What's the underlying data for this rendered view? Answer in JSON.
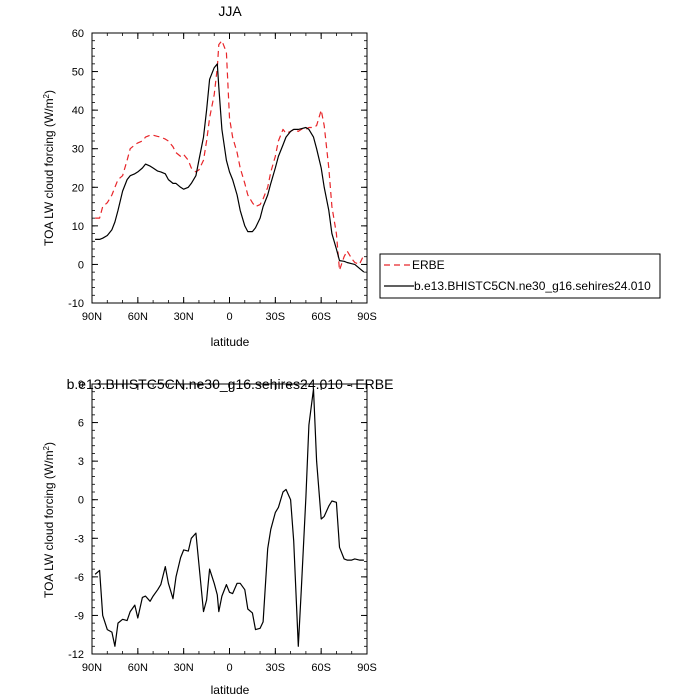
{
  "chart_data": [
    {
      "type": "line",
      "title": "JJA",
      "xlabel": "latitude",
      "ylabel": "TOA LW cloud forcing (W/m²)",
      "xlim": [
        90,
        -90
      ],
      "ylim": [
        -10,
        60
      ],
      "xticks": [
        90,
        60,
        30,
        0,
        -30,
        -60,
        -90
      ],
      "xticklabels": [
        "90N",
        "60N",
        "30N",
        "0",
        "30S",
        "60S",
        "90S"
      ],
      "yticks": [
        -10,
        0,
        10,
        20,
        30,
        40,
        50,
        60
      ],
      "legend": {
        "placement": "right",
        "entries": [
          "ERBE",
          "b.e13.BHISTC5CN.ne30_g16.sehires24.010"
        ]
      },
      "series": [
        {
          "name": "ERBE",
          "color": "#e8262a",
          "dash": "dashed",
          "x": [
            88,
            85,
            83,
            80,
            77,
            75,
            73,
            70,
            67,
            65,
            62,
            60,
            57,
            55,
            52,
            50,
            47,
            45,
            42,
            40,
            37,
            35,
            32,
            30,
            27,
            25,
            22,
            20,
            17,
            15,
            13,
            10,
            8,
            7,
            5,
            2,
            0,
            -2,
            -5,
            -7,
            -10,
            -12,
            -15,
            -17,
            -20,
            -22,
            -25,
            -27,
            -30,
            -32,
            -35,
            -37,
            -40,
            -42,
            -45,
            -47,
            -50,
            -52,
            -55,
            -57,
            -60,
            -62,
            -65,
            -67,
            -70,
            -72,
            -75,
            -77,
            -80,
            -82,
            -85,
            -88
          ],
          "y": [
            12,
            12,
            15,
            16,
            18,
            20,
            22,
            23,
            27,
            30,
            31,
            31.5,
            32,
            33,
            33.5,
            33.5,
            33.2,
            33,
            32.5,
            32,
            30.5,
            29,
            28,
            28.5,
            27,
            25,
            24,
            24.5,
            27,
            32,
            38,
            44,
            51,
            57,
            58,
            55,
            38,
            33,
            29,
            25,
            21,
            18,
            16,
            15,
            15.5,
            17,
            20,
            24,
            28,
            32,
            35,
            34,
            34.5,
            35,
            34.5,
            35,
            35,
            35.5,
            35.5,
            36,
            40,
            36,
            25,
            15,
            8,
            -1.5,
            2,
            3.5,
            1.5,
            0.5,
            0,
            2.5
          ]
        },
        {
          "name": "b.e13.BHISTC5CN.ne30_g16.sehires24.010",
          "color": "#000000",
          "dash": "solid",
          "x": [
            88,
            85,
            83,
            80,
            77,
            75,
            73,
            70,
            67,
            65,
            62,
            60,
            57,
            55,
            52,
            50,
            47,
            45,
            42,
            40,
            37,
            35,
            32,
            30,
            27,
            25,
            22,
            20,
            17,
            15,
            13,
            10,
            8,
            7,
            5,
            2,
            0,
            -2,
            -5,
            -7,
            -10,
            -12,
            -15,
            -17,
            -20,
            -22,
            -25,
            -27,
            -30,
            -32,
            -35,
            -37,
            -40,
            -42,
            -45,
            -47,
            -50,
            -52,
            -55,
            -57,
            -60,
            -62,
            -65,
            -67,
            -70,
            -72,
            -75,
            -77,
            -80,
            -82,
            -85,
            -88
          ],
          "y": [
            6.5,
            6.5,
            6.8,
            7.5,
            9,
            11,
            14,
            19,
            22,
            23,
            23.5,
            24,
            25,
            26,
            25.5,
            25,
            24.2,
            24,
            23.5,
            22,
            21,
            21,
            20,
            19.5,
            20,
            21,
            23,
            27,
            33,
            40,
            48,
            51,
            52,
            46,
            35,
            27,
            24,
            22,
            18,
            14,
            10,
            8.5,
            8.5,
            9.5,
            12,
            15,
            18,
            21,
            25,
            28,
            31,
            33,
            34.5,
            35,
            35,
            35.2,
            35.5,
            35,
            33,
            30,
            25,
            20,
            14,
            8,
            4,
            1,
            0.8,
            0.5,
            0.2,
            0,
            -1,
            -2
          ]
        }
      ]
    },
    {
      "type": "line",
      "title": "b.e13.BHISTC5CN.ne30_g16.sehires24.010 - ERBE",
      "xlabel": "latitude",
      "ylabel": "TOA LW cloud forcing (W/m²)",
      "xlim": [
        90,
        -90
      ],
      "ylim": [
        -12,
        9
      ],
      "xticks": [
        90,
        60,
        30,
        0,
        -30,
        -60,
        -90
      ],
      "xticklabels": [
        "90N",
        "60N",
        "30N",
        "0",
        "30S",
        "60S",
        "90S"
      ],
      "yticks": [
        -12,
        -9,
        -6,
        -3,
        0,
        3,
        6,
        9
      ],
      "series": [
        {
          "color": "#000000",
          "x": [
            88,
            85,
            83,
            80,
            77,
            75,
            73,
            70,
            67,
            65,
            62,
            60,
            57,
            55,
            52,
            50,
            47,
            45,
            42,
            40,
            37,
            35,
            32,
            30,
            27,
            25,
            22,
            20,
            17,
            15,
            13,
            10,
            8,
            7,
            5,
            2,
            0,
            -2,
            -5,
            -7,
            -10,
            -12,
            -15,
            -17,
            -20,
            -22,
            -25,
            -27,
            -30,
            -32,
            -35,
            -37,
            -40,
            -42,
            -45,
            -47,
            -50,
            -52,
            -55,
            -57,
            -60,
            -62,
            -65,
            -67,
            -70,
            -72,
            -75,
            -77,
            -80,
            -82,
            -85,
            -88
          ],
          "y": [
            -5.8,
            -5.5,
            -9,
            -10.1,
            -10.3,
            -11.4,
            -9.6,
            -9.3,
            -9.4,
            -8.7,
            -8.2,
            -9.2,
            -7.6,
            -7.5,
            -7.9,
            -7.5,
            -7,
            -6.6,
            -5.2,
            -6.5,
            -7.7,
            -6,
            -4.5,
            -3.9,
            -4,
            -3,
            -2.6,
            -5,
            -8.7,
            -7.8,
            -5.4,
            -6.5,
            -7.4,
            -8.7,
            -7.5,
            -6.6,
            -7.2,
            -7.3,
            -6.5,
            -6.5,
            -7,
            -8.5,
            -8.8,
            -10.1,
            -10,
            -9.5,
            -3.8,
            -2.3,
            -1,
            -0.6,
            0.6,
            0.8,
            0,
            -3.2,
            -11.4,
            -7,
            0.2,
            5.8,
            8.6,
            3,
            -1.5,
            -1.3,
            -0.5,
            -0.1,
            -0.2,
            -3.7,
            -4.6,
            -4.7,
            -4.7,
            -4.6,
            -4.7,
            -4.7
          ]
        }
      ]
    }
  ]
}
